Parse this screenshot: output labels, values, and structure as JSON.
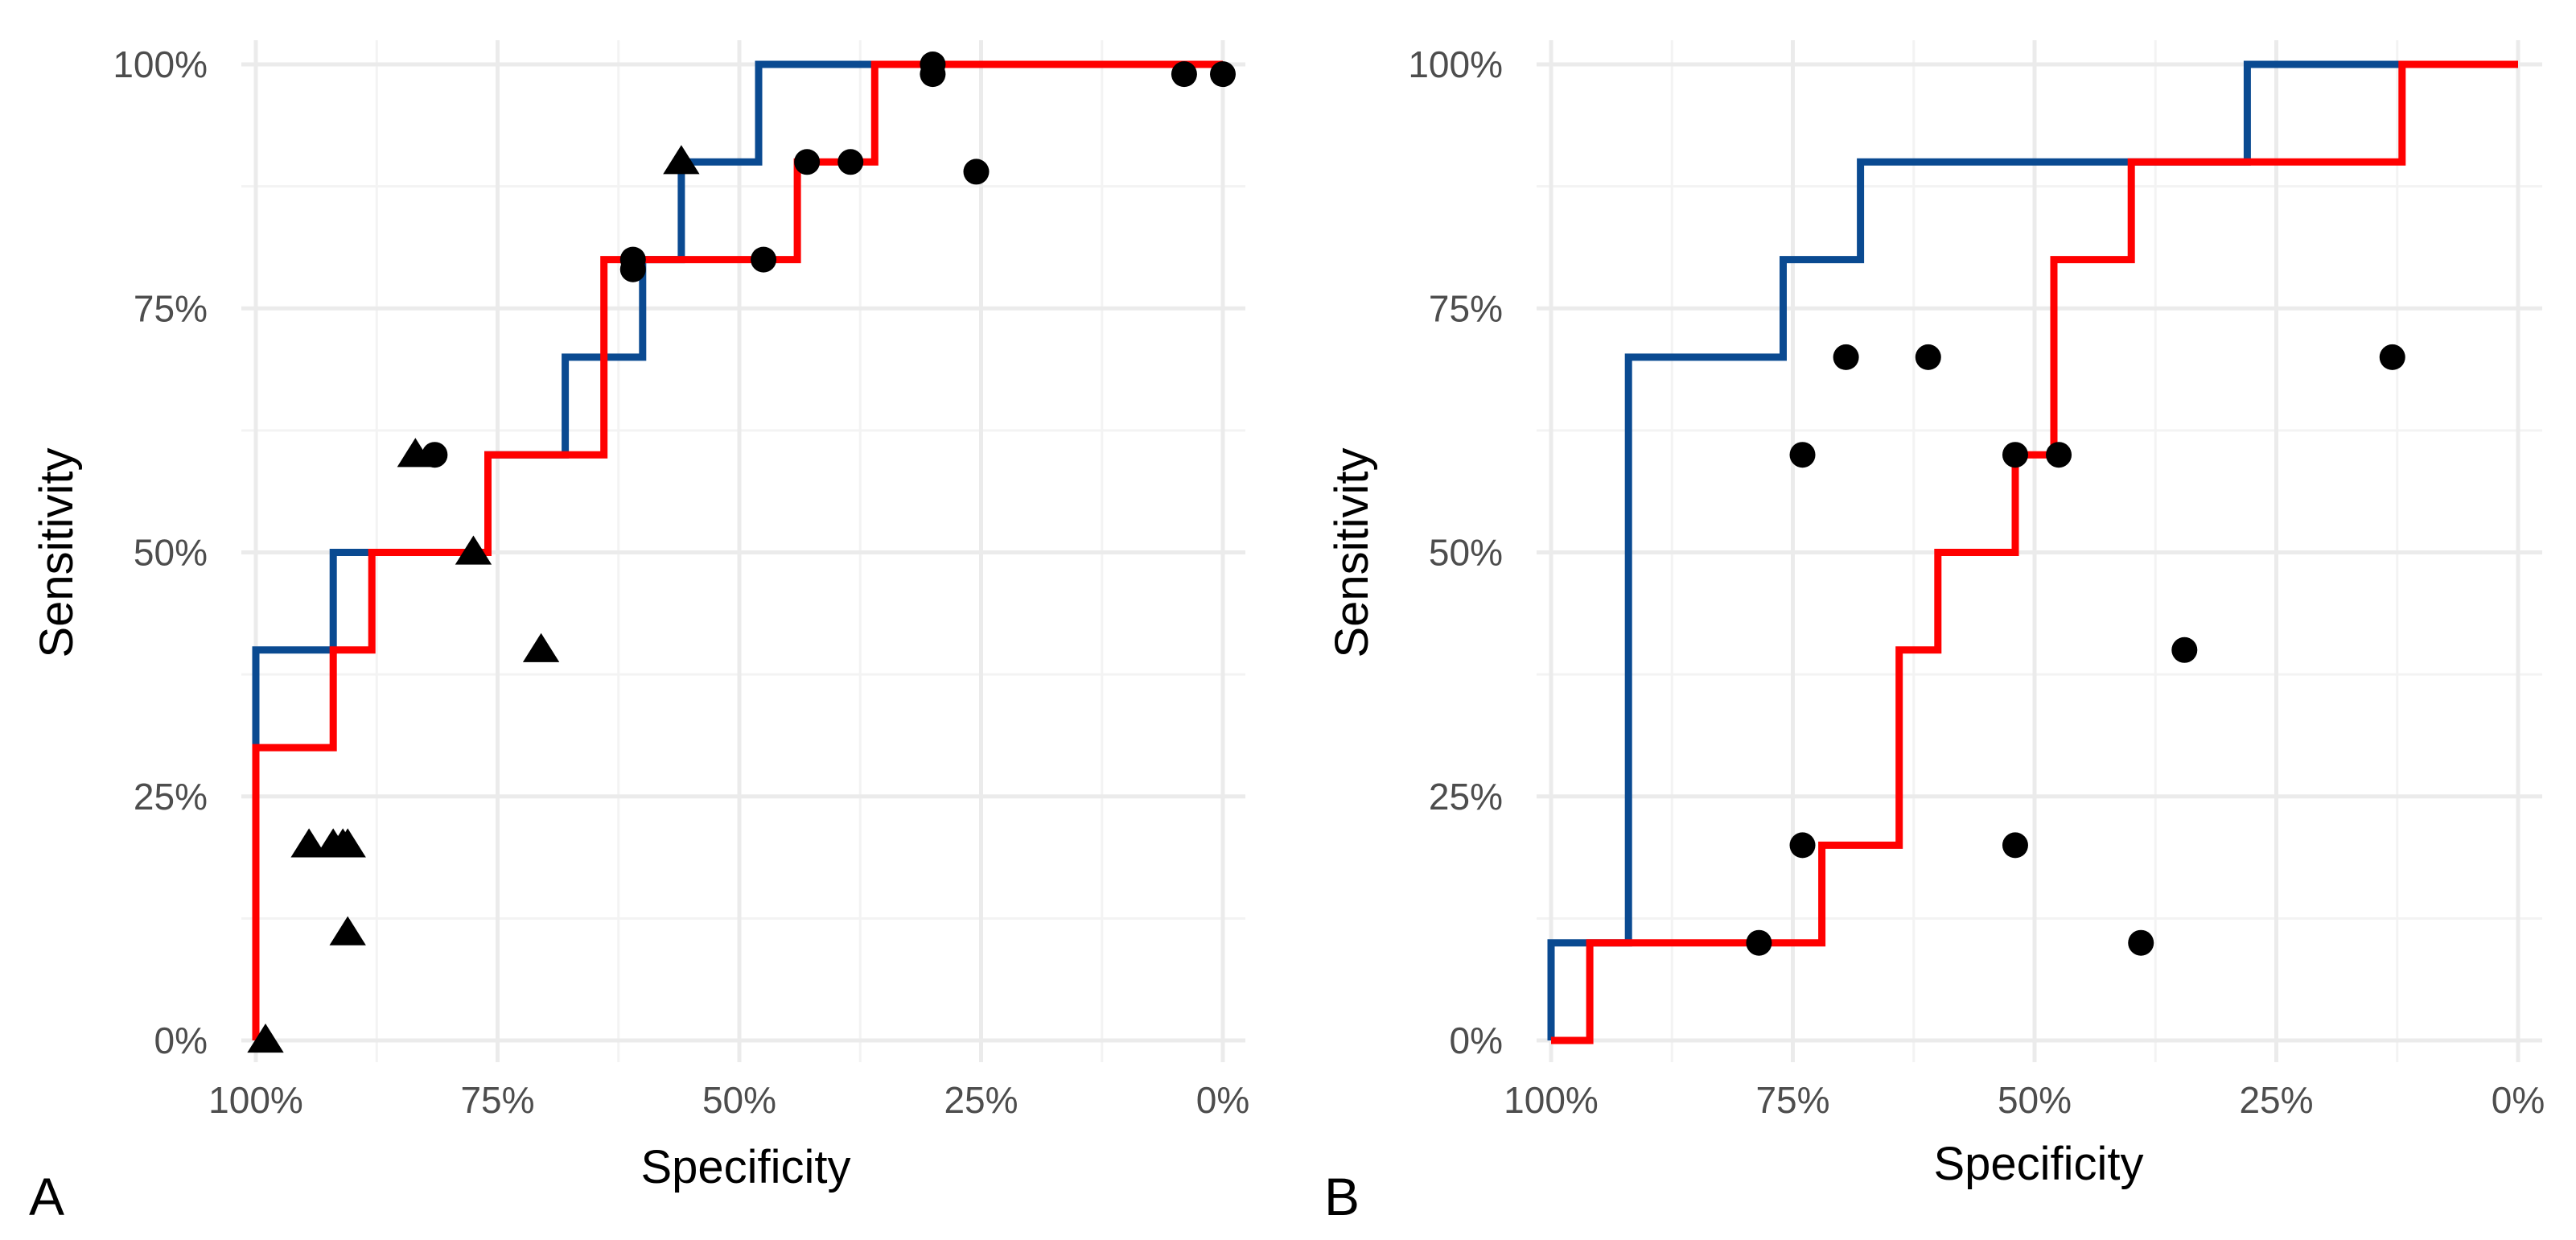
{
  "figure": {
    "background": "#ffffff",
    "grid_color": "#ebebeb",
    "tick_label_color": "#4d4d4d"
  },
  "chart_data": [
    {
      "panel_label": "A",
      "type": "line",
      "xlabel": "Specificity",
      "ylabel": "Sensitivity",
      "xlim": [
        1.0,
        0.0
      ],
      "ylim": [
        0.0,
        1.0
      ],
      "x_reversed": true,
      "x_ticks": [
        1.0,
        0.75,
        0.5,
        0.25,
        0.0
      ],
      "x_tick_labels": [
        "100%",
        "75%",
        "50%",
        "25%",
        "0%"
      ],
      "y_ticks": [
        0.0,
        0.25,
        0.5,
        0.75,
        1.0
      ],
      "y_tick_labels": [
        "0%",
        "25%",
        "50%",
        "75%",
        "100%"
      ],
      "grid": true,
      "series": [
        {
          "name": "blue",
          "color": "#0a4a91",
          "points": [
            [
              1.0,
              0.3
            ],
            [
              1.0,
              0.4
            ],
            [
              0.92,
              0.4
            ],
            [
              0.92,
              0.5
            ],
            [
              0.88,
              0.5
            ],
            [
              0.88,
              0.5
            ],
            [
              0.76,
              0.5
            ],
            [
              0.76,
              0.6
            ],
            [
              0.68,
              0.6
            ],
            [
              0.68,
              0.7
            ],
            [
              0.6,
              0.7
            ],
            [
              0.6,
              0.8
            ],
            [
              0.56,
              0.8
            ],
            [
              0.56,
              0.9
            ],
            [
              0.48,
              0.9
            ],
            [
              0.48,
              1.0
            ],
            [
              0.0,
              1.0
            ]
          ]
        },
        {
          "name": "red",
          "color": "#ff0000",
          "points": [
            [
              1.0,
              0.0
            ],
            [
              1.0,
              0.3
            ],
            [
              0.92,
              0.3
            ],
            [
              0.92,
              0.4
            ],
            [
              0.88,
              0.4
            ],
            [
              0.88,
              0.5
            ],
            [
              0.76,
              0.5
            ],
            [
              0.76,
              0.6
            ],
            [
              0.64,
              0.6
            ],
            [
              0.64,
              0.8
            ],
            [
              0.44,
              0.8
            ],
            [
              0.44,
              0.9
            ],
            [
              0.36,
              0.9
            ],
            [
              0.36,
              1.0
            ],
            [
              0.0,
              1.0
            ]
          ]
        }
      ],
      "markers": [
        {
          "shape": "triangle",
          "x": 0.99,
          "y": 0.0
        },
        {
          "shape": "triangle",
          "x": 0.945,
          "y": 0.2
        },
        {
          "shape": "triangle",
          "x": 0.92,
          "y": 0.2
        },
        {
          "shape": "triangle",
          "x": 0.91,
          "y": 0.2
        },
        {
          "shape": "triangle",
          "x": 0.905,
          "y": 0.2
        },
        {
          "shape": "triangle",
          "x": 0.905,
          "y": 0.11
        },
        {
          "shape": "triangle",
          "x": 0.835,
          "y": 0.6
        },
        {
          "shape": "triangle",
          "x": 0.775,
          "y": 0.5
        },
        {
          "shape": "triangle",
          "x": 0.705,
          "y": 0.4
        },
        {
          "shape": "triangle",
          "x": 0.56,
          "y": 0.9
        },
        {
          "shape": "circle",
          "x": 0.815,
          "y": 0.6
        },
        {
          "shape": "circle",
          "x": 0.61,
          "y": 0.8
        },
        {
          "shape": "circle",
          "x": 0.61,
          "y": 0.79
        },
        {
          "shape": "circle",
          "x": 0.475,
          "y": 0.8
        },
        {
          "shape": "circle",
          "x": 0.43,
          "y": 0.9
        },
        {
          "shape": "circle",
          "x": 0.385,
          "y": 0.9
        },
        {
          "shape": "circle",
          "x": 0.3,
          "y": 1.0
        },
        {
          "shape": "circle",
          "x": 0.3,
          "y": 0.99
        },
        {
          "shape": "circle",
          "x": 0.255,
          "y": 0.89
        },
        {
          "shape": "circle",
          "x": 0.04,
          "y": 0.99
        },
        {
          "shape": "circle",
          "x": 0.0,
          "y": 0.99
        }
      ]
    },
    {
      "panel_label": "B",
      "type": "line",
      "xlabel": "Specificity",
      "ylabel": "Sensitivity",
      "xlim": [
        1.0,
        0.0
      ],
      "ylim": [
        0.0,
        1.0
      ],
      "x_reversed": true,
      "x_ticks": [
        1.0,
        0.75,
        0.5,
        0.25,
        0.0
      ],
      "x_tick_labels": [
        "100%",
        "75%",
        "50%",
        "25%",
        "0%"
      ],
      "y_ticks": [
        0.0,
        0.25,
        0.5,
        0.75,
        1.0
      ],
      "y_tick_labels": [
        "0%",
        "25%",
        "50%",
        "75%",
        "100%"
      ],
      "grid": true,
      "series": [
        {
          "name": "blue",
          "color": "#0a4a91",
          "points": [
            [
              1.0,
              0.0
            ],
            [
              1.0,
              0.1
            ],
            [
              0.92,
              0.1
            ],
            [
              0.92,
              0.7
            ],
            [
              0.76,
              0.7
            ],
            [
              0.76,
              0.8
            ],
            [
              0.68,
              0.8
            ],
            [
              0.68,
              0.9
            ],
            [
              0.4,
              0.9
            ],
            [
              0.4,
              0.9
            ],
            [
              0.28,
              0.9
            ],
            [
              0.28,
              1.0
            ],
            [
              0.0,
              1.0
            ]
          ]
        },
        {
          "name": "red",
          "color": "#ff0000",
          "points": [
            [
              1.0,
              0.0
            ],
            [
              0.96,
              0.0
            ],
            [
              0.96,
              0.1
            ],
            [
              0.72,
              0.1
            ],
            [
              0.72,
              0.2
            ],
            [
              0.64,
              0.2
            ],
            [
              0.64,
              0.4
            ],
            [
              0.6,
              0.4
            ],
            [
              0.6,
              0.5
            ],
            [
              0.52,
              0.5
            ],
            [
              0.52,
              0.6
            ],
            [
              0.48,
              0.6
            ],
            [
              0.48,
              0.8
            ],
            [
              0.4,
              0.8
            ],
            [
              0.4,
              0.9
            ],
            [
              0.12,
              0.9
            ],
            [
              0.12,
              1.0
            ],
            [
              0.0,
              1.0
            ]
          ]
        }
      ],
      "markers": [
        {
          "shape": "circle",
          "x": 0.785,
          "y": 0.1
        },
        {
          "shape": "circle",
          "x": 0.74,
          "y": 0.2
        },
        {
          "shape": "circle",
          "x": 0.74,
          "y": 0.6
        },
        {
          "shape": "circle",
          "x": 0.695,
          "y": 0.7
        },
        {
          "shape": "circle",
          "x": 0.61,
          "y": 0.7
        },
        {
          "shape": "circle",
          "x": 0.52,
          "y": 0.6
        },
        {
          "shape": "circle",
          "x": 0.475,
          "y": 0.6
        },
        {
          "shape": "circle",
          "x": 0.52,
          "y": 0.2
        },
        {
          "shape": "circle",
          "x": 0.39,
          "y": 0.1
        },
        {
          "shape": "circle",
          "x": 0.345,
          "y": 0.4
        },
        {
          "shape": "circle",
          "x": 0.13,
          "y": 0.7
        }
      ]
    }
  ]
}
